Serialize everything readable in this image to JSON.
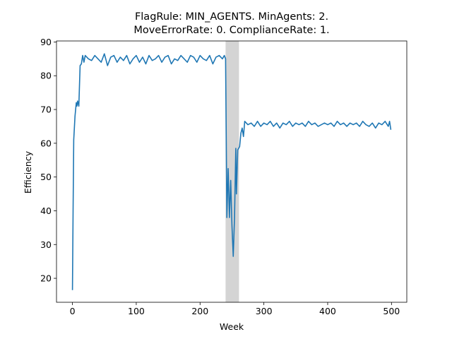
{
  "chart_data": {
    "type": "line",
    "title": [
      "FlagRule: MIN_AGENTS. MinAgents: 2.",
      "MoveErrorRate: 0. ComplianceRate: 1."
    ],
    "x_label": "Week",
    "y_label": "Efficiency",
    "xlim": [
      -25,
      524
    ],
    "ylim": [
      12.9,
      90.3
    ],
    "xticks": [
      0,
      100,
      200,
      300,
      400,
      500
    ],
    "yticks": [
      20,
      30,
      40,
      50,
      60,
      70,
      80,
      90
    ],
    "shade": {
      "range": [
        240,
        261
      ],
      "color": "#d4d4d4"
    },
    "series": [
      {
        "name": "Efficiency",
        "color": "#1f77b4",
        "x": [
          0,
          1,
          2,
          4,
          6,
          7,
          8,
          10,
          12,
          14,
          16,
          18,
          20,
          25,
          30,
          35,
          40,
          45,
          50,
          55,
          60,
          65,
          70,
          75,
          80,
          85,
          90,
          95,
          100,
          105,
          110,
          115,
          120,
          125,
          130,
          135,
          140,
          145,
          150,
          155,
          160,
          165,
          170,
          175,
          180,
          185,
          190,
          195,
          200,
          205,
          210,
          215,
          220,
          225,
          230,
          235,
          238,
          240,
          242,
          244,
          246,
          248,
          250,
          252,
          254,
          256,
          257,
          259,
          262,
          264,
          266,
          268,
          270,
          275,
          280,
          285,
          290,
          295,
          300,
          305,
          310,
          315,
          320,
          325,
          330,
          335,
          340,
          345,
          350,
          355,
          360,
          365,
          370,
          375,
          380,
          385,
          390,
          395,
          400,
          405,
          410,
          415,
          420,
          425,
          430,
          435,
          440,
          445,
          450,
          455,
          460,
          465,
          470,
          475,
          480,
          485,
          490,
          495,
          497,
          499
        ],
        "values": [
          16.5,
          40,
          61,
          68,
          72,
          71,
          72.5,
          71,
          83,
          83.5,
          86,
          84,
          86,
          85,
          84.5,
          86,
          85,
          84,
          86.5,
          83,
          85.5,
          86,
          84,
          85.5,
          84.5,
          86,
          83.5,
          85,
          86,
          84,
          85.5,
          83.5,
          86,
          84.5,
          85,
          86,
          84,
          85.5,
          86,
          83.5,
          85,
          84.5,
          86,
          85,
          84,
          86,
          85.5,
          84,
          86,
          85,
          84.5,
          86,
          83.5,
          85.5,
          86,
          85,
          86,
          85,
          38,
          52.5,
          38,
          49,
          35.5,
          26.5,
          38,
          58.5,
          45,
          58,
          59,
          63,
          64.5,
          62,
          66.5,
          65.5,
          66,
          65,
          66.5,
          65,
          66,
          65.5,
          66.5,
          65,
          66,
          64.5,
          66,
          65.5,
          66.5,
          65,
          66,
          65.5,
          66,
          65,
          66.5,
          65.5,
          66,
          65,
          65.5,
          66,
          65.5,
          66,
          65,
          66.5,
          65.5,
          66,
          65,
          66,
          65.5,
          66,
          65,
          66.5,
          65.5,
          65,
          66,
          64.5,
          66,
          65.5,
          66.5,
          65,
          66.5,
          64
        ]
      }
    ]
  }
}
